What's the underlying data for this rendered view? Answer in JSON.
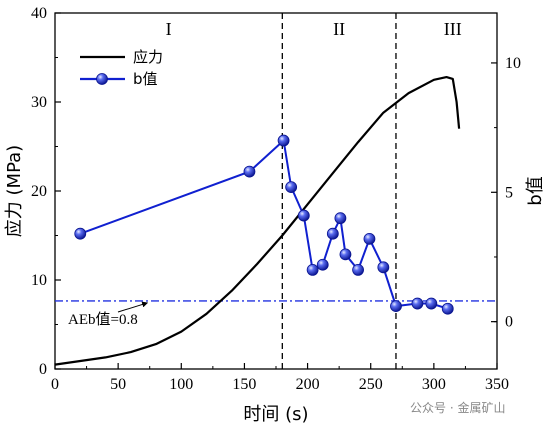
{
  "chart_data": {
    "type": "line",
    "xlabel": "时间 (s)",
    "ylabel_left": "应力 (MPa)",
    "ylabel_right": "b值",
    "xlim": [
      0,
      350
    ],
    "ylim_left": [
      0,
      40
    ],
    "ylim_right": [
      -1.83,
      11.93
    ],
    "x_ticks": [
      "0",
      "50",
      "100",
      "150",
      "200",
      "250",
      "300",
      "350"
    ],
    "y_left_ticks": [
      "0",
      "10",
      "20",
      "30",
      "40"
    ],
    "y_right_ticks": [
      "0",
      "5",
      "10"
    ],
    "legend_position": "top-left",
    "regions": [
      {
        "label": "I",
        "x_center": 90
      },
      {
        "label": "II",
        "x_center": 225
      },
      {
        "label": "III",
        "x_center": 315
      }
    ],
    "dividers_x": [
      180,
      270
    ],
    "series": [
      {
        "name": "应力",
        "axis": "left",
        "color": "#000000",
        "x": [
          0,
          20,
          40,
          60,
          80,
          100,
          120,
          140,
          160,
          180,
          200,
          220,
          240,
          260,
          280,
          300,
          310,
          315,
          318,
          320
        ],
        "values": [
          0.5,
          0.9,
          1.3,
          1.9,
          2.8,
          4.2,
          6.2,
          8.8,
          11.8,
          15.0,
          18.5,
          22.0,
          25.5,
          28.8,
          31.0,
          32.5,
          32.8,
          32.6,
          30.0,
          27.0
        ]
      },
      {
        "name": "b值",
        "axis": "right",
        "color": "#1020d0",
        "marker": "sphere",
        "x": [
          20,
          154,
          181,
          187,
          197,
          204,
          212,
          220,
          226,
          230,
          240,
          249,
          260,
          270,
          287,
          298,
          311
        ],
        "values": [
          3.4,
          5.8,
          7.0,
          5.2,
          4.1,
          2.0,
          2.2,
          3.4,
          4.0,
          2.6,
          2.0,
          3.2,
          2.1,
          0.6,
          0.7,
          0.7,
          0.5
        ]
      }
    ],
    "reference_line": {
      "axis": "right",
      "value": 0.8,
      "color": "#2030e0",
      "style": "dash-dot"
    },
    "annotation": {
      "text": "AEb值=0.8",
      "points_to_x": 73
    }
  },
  "watermark": "公众号 · 金属矿山"
}
